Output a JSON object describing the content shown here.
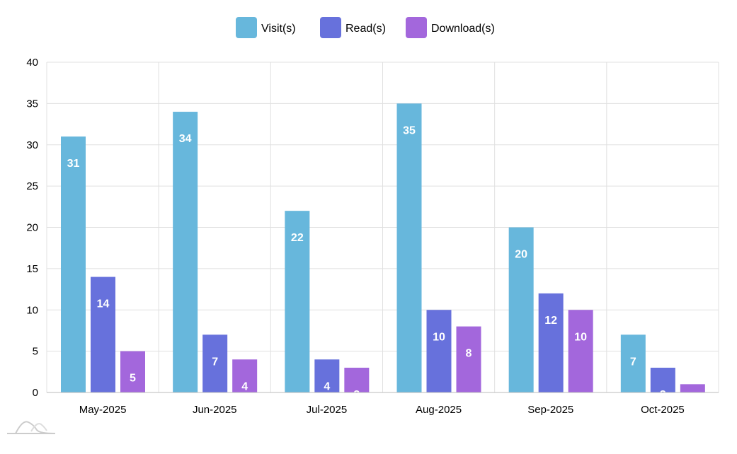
{
  "chart_data": {
    "type": "bar",
    "categories": [
      "May-2025",
      "Jun-2025",
      "Jul-2025",
      "Aug-2025",
      "Sep-2025",
      "Oct-2025"
    ],
    "series": [
      {
        "name": "Visit(s)",
        "color": "#67b7dc",
        "values": [
          31,
          34,
          22,
          35,
          20,
          7
        ]
      },
      {
        "name": "Read(s)",
        "color": "#6771dc",
        "values": [
          14,
          7,
          4,
          10,
          12,
          3
        ]
      },
      {
        "name": "Download(s)",
        "color": "#a367dc",
        "values": [
          5,
          4,
          3,
          8,
          10,
          1
        ]
      }
    ],
    "ylim": [
      0,
      40
    ],
    "yticks": [
      0,
      5,
      10,
      15,
      20,
      25,
      30,
      35,
      40
    ],
    "grid": true,
    "legend_position": "top-center",
    "title": "",
    "xlabel": "",
    "ylabel": ""
  }
}
